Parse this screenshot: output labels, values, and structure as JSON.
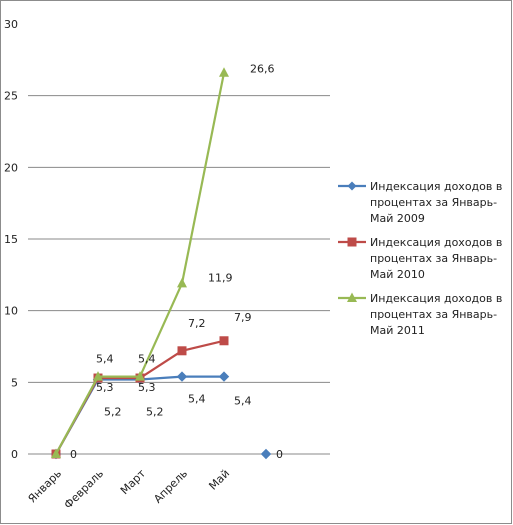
{
  "chart_data": {
    "type": "line",
    "categories": [
      "Январь",
      "Февраль",
      "Март",
      "Апрель",
      "Май",
      ""
    ],
    "ylim": [
      0,
      30
    ],
    "yticks": [
      0,
      5,
      10,
      15,
      20,
      25,
      30
    ],
    "ytick_labels": [
      "0",
      "5",
      "10",
      "15",
      "20",
      "25",
      "30"
    ],
    "grid": "horizontal major",
    "legend_position": "right",
    "series": [
      {
        "name": "Индексация доходов в процентах за Январь-Май 2009",
        "color": "#4a7ebb",
        "marker": "diamond",
        "values": [
          0,
          5.2,
          5.2,
          5.4,
          5.4,
          0
        ],
        "labels": [
          "0",
          "5,2",
          "5,2",
          "5,4",
          "5,4",
          "0"
        ]
      },
      {
        "name": "Индексация доходов в процентах за Январь-Май 2010",
        "color": "#be4b48",
        "marker": "square",
        "values": [
          0,
          5.3,
          5.3,
          7.2,
          7.9,
          null
        ],
        "labels": [
          "",
          "5,3",
          "5,3",
          "7,2",
          "7,9",
          ""
        ]
      },
      {
        "name": "Индексация доходов в процентах за Январь-Май 2011",
        "color": "#98b954",
        "marker": "triangle",
        "values": [
          0,
          5.4,
          5.4,
          11.9,
          26.6,
          null
        ],
        "labels": [
          "",
          "5,4",
          "5,4",
          "11,9",
          "26,6",
          ""
        ]
      }
    ],
    "legend": [
      [
        "Индексация доходов в",
        "процентах за Январь-",
        "Май 2009"
      ],
      [
        "Индексация доходов в",
        "процентах за Январь-",
        "Май 2010"
      ],
      [
        "Индексация доходов в",
        "процентах за Январь-",
        "Май 2011"
      ]
    ]
  }
}
